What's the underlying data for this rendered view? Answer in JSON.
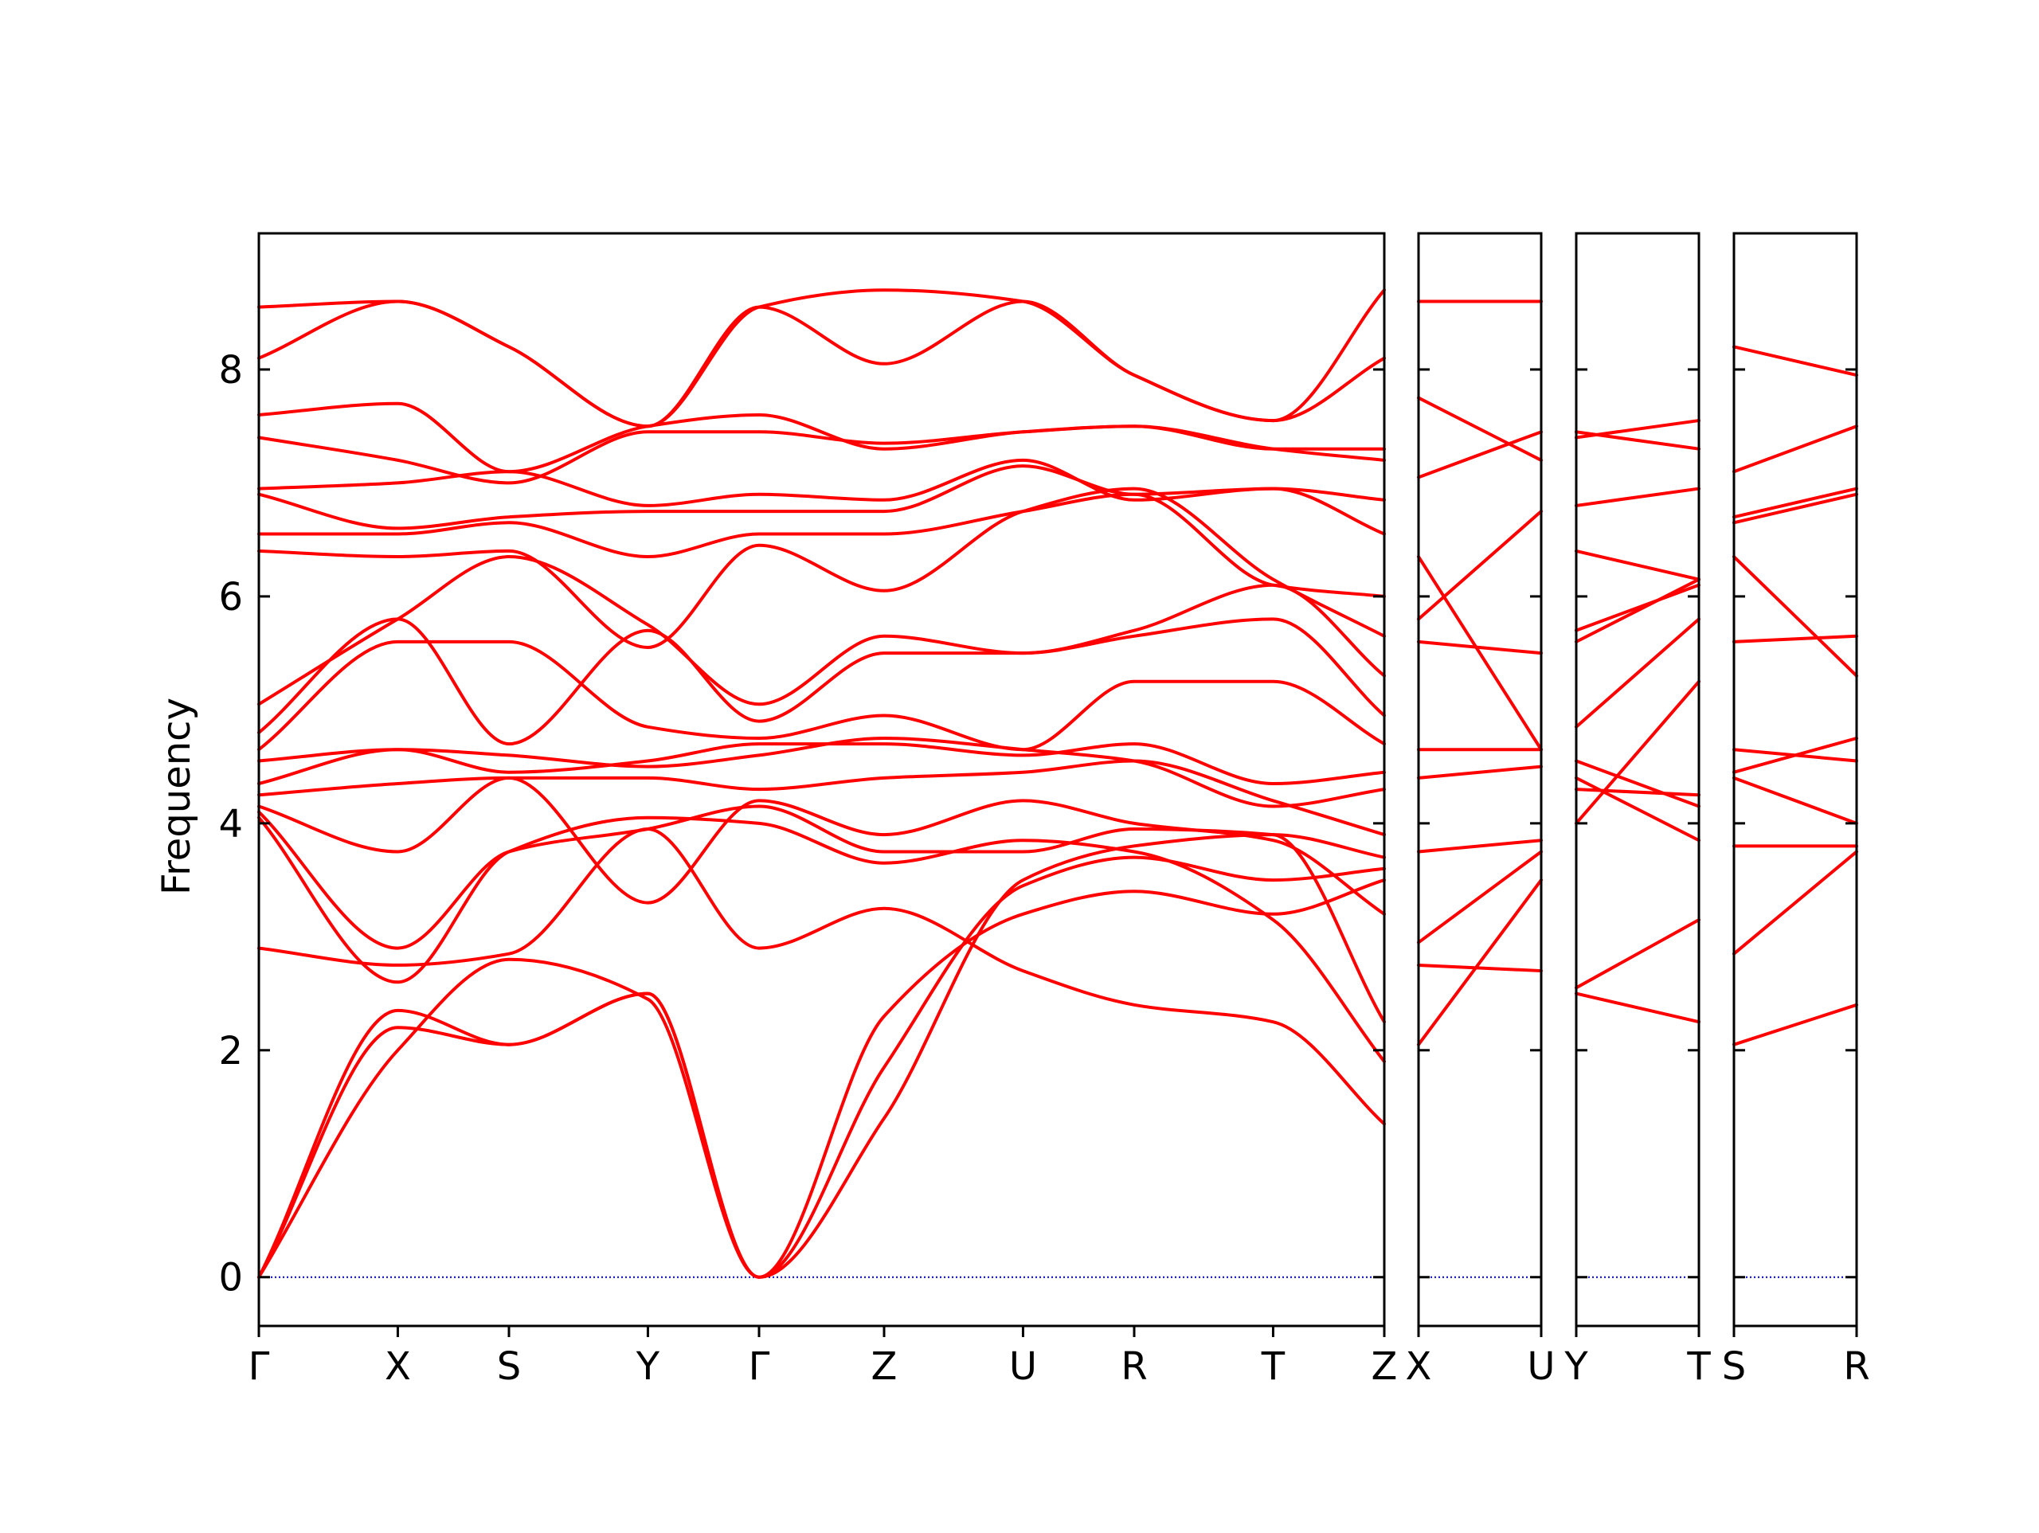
{
  "chart_data": {
    "type": "line",
    "title": "",
    "ylabel": "Frequency",
    "ylim": [
      -0.43,
      9.2
    ],
    "yticks": [
      0,
      2,
      4,
      6,
      8
    ],
    "grid": false,
    "band_color": "#ff0000",
    "zero_line_color": "#0000cc",
    "panels": [
      {
        "labels": [
          "Γ",
          "X",
          "S",
          "Y",
          "Γ",
          "Z",
          "U",
          "R",
          "T",
          "Z"
        ],
        "x": [
          0,
          1,
          1.8,
          2.8,
          3.6,
          4.5,
          5.5,
          6.3,
          7.3,
          8.1
        ],
        "bands": [
          [
            0,
            2.2,
            2.05,
            2.5,
            0,
            1.4,
            3.5,
            3.8,
            3.9,
            3.7
          ],
          [
            0,
            2.35,
            2.05,
            2.5,
            0,
            1.85,
            3.45,
            3.7,
            3.5,
            3.6
          ],
          [
            0,
            2.0,
            2.8,
            2.45,
            0,
            2.3,
            3.2,
            3.4,
            3.2,
            3.5
          ],
          [
            2.9,
            2.75,
            2.85,
            3.95,
            2.9,
            3.25,
            2.7,
            2.4,
            2.25,
            1.35
          ],
          [
            4.05,
            2.6,
            3.75,
            4.05,
            4.0,
            3.65,
            3.85,
            3.75,
            3.15,
            1.9
          ],
          [
            4.1,
            2.9,
            3.75,
            3.95,
            4.15,
            3.75,
            3.75,
            3.95,
            3.9,
            2.25
          ],
          [
            4.15,
            3.75,
            4.4,
            3.3,
            4.2,
            3.9,
            4.2,
            4.0,
            3.85,
            3.2
          ],
          [
            4.25,
            4.35,
            4.4,
            4.4,
            4.3,
            4.4,
            4.45,
            4.55,
            4.2,
            3.9
          ],
          [
            4.35,
            4.65,
            4.6,
            4.5,
            4.6,
            4.75,
            4.65,
            4.55,
            4.15,
            4.3
          ],
          [
            4.55,
            4.65,
            4.45,
            4.55,
            4.7,
            4.7,
            4.6,
            4.7,
            4.35,
            4.45
          ],
          [
            4.65,
            5.6,
            5.6,
            4.85,
            4.75,
            4.95,
            4.65,
            5.25,
            5.25,
            4.7
          ],
          [
            4.8,
            5.8,
            4.7,
            5.7,
            4.9,
            5.5,
            5.5,
            5.65,
            5.8,
            4.95
          ],
          [
            5.05,
            5.8,
            6.35,
            5.75,
            5.05,
            5.65,
            5.5,
            5.7,
            6.1,
            5.3
          ],
          [
            6.4,
            6.35,
            6.4,
            5.55,
            6.45,
            6.05,
            6.75,
            6.95,
            6.15,
            5.65
          ],
          [
            6.55,
            6.55,
            6.65,
            6.35,
            6.55,
            6.55,
            6.75,
            6.9,
            6.1,
            6.0
          ],
          [
            6.9,
            6.6,
            6.7,
            6.75,
            6.75,
            6.75,
            7.15,
            6.9,
            6.95,
            6.55
          ],
          [
            6.95,
            7.0,
            7.1,
            6.8,
            6.9,
            6.85,
            7.2,
            6.85,
            6.95,
            6.85
          ],
          [
            7.4,
            7.2,
            7.0,
            7.45,
            7.45,
            7.35,
            7.45,
            7.5,
            7.3,
            7.2
          ],
          [
            7.6,
            7.7,
            7.1,
            7.5,
            7.6,
            7.3,
            7.45,
            7.5,
            7.3,
            7.3
          ],
          [
            8.1,
            8.6,
            8.2,
            7.5,
            8.55,
            8.05,
            8.6,
            7.95,
            7.55,
            8.1
          ],
          [
            8.55,
            8.6,
            8.2,
            7.5,
            8.55,
            8.7,
            8.6,
            7.95,
            7.55,
            8.7
          ]
        ]
      },
      {
        "labels": [
          "X",
          "U"
        ],
        "x": [
          0,
          1
        ],
        "bands": [
          [
            2.05,
            3.5
          ],
          [
            2.75,
            2.7
          ],
          [
            2.95,
            3.75
          ],
          [
            3.75,
            3.85
          ],
          [
            4.4,
            4.5
          ],
          [
            4.65,
            4.65
          ],
          [
            5.6,
            5.5
          ],
          [
            5.8,
            6.75
          ],
          [
            6.35,
            4.65
          ],
          [
            7.05,
            7.45
          ],
          [
            7.75,
            7.2
          ],
          [
            8.6,
            8.6
          ]
        ]
      },
      {
        "labels": [
          "Y",
          "T"
        ],
        "x": [
          0,
          1
        ],
        "bands": [
          [
            2.5,
            2.25
          ],
          [
            2.55,
            3.15
          ],
          [
            4.0,
            5.25
          ],
          [
            4.3,
            4.25
          ],
          [
            4.4,
            3.85
          ],
          [
            4.55,
            4.15
          ],
          [
            4.85,
            5.8
          ],
          [
            5.6,
            6.15
          ],
          [
            5.7,
            6.1
          ],
          [
            6.4,
            6.15
          ],
          [
            6.8,
            6.95
          ],
          [
            7.4,
            7.55
          ],
          [
            7.45,
            7.3
          ]
        ]
      },
      {
        "labels": [
          "S",
          "R"
        ],
        "x": [
          0,
          1
        ],
        "bands": [
          [
            2.05,
            2.4
          ],
          [
            2.85,
            3.75
          ],
          [
            3.8,
            3.8
          ],
          [
            4.4,
            4.0
          ],
          [
            4.45,
            4.75
          ],
          [
            4.65,
            4.55
          ],
          [
            5.6,
            5.65
          ],
          [
            6.35,
            5.3
          ],
          [
            6.65,
            6.9
          ],
          [
            6.7,
            6.95
          ],
          [
            7.1,
            7.5
          ],
          [
            8.2,
            7.95
          ]
        ]
      }
    ]
  }
}
